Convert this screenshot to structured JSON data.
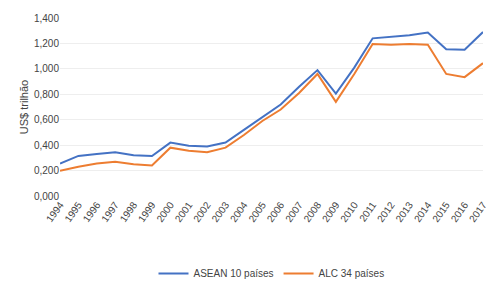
{
  "chart_data": {
    "type": "line",
    "x": [
      1994,
      1995,
      1996,
      1997,
      1998,
      1999,
      2000,
      2001,
      2002,
      2003,
      2004,
      2005,
      2006,
      2007,
      2008,
      2009,
      2010,
      2011,
      2012,
      2013,
      2014,
      2015,
      2016,
      2017
    ],
    "series": [
      {
        "name": "ASEAN 10 países",
        "color": "#4472C4",
        "values": [
          0.255,
          0.315,
          0.33,
          0.345,
          0.32,
          0.315,
          0.42,
          0.395,
          0.39,
          0.42,
          0.52,
          0.62,
          0.72,
          0.86,
          0.99,
          0.805,
          1.01,
          1.24,
          1.25,
          1.265,
          1.285,
          1.155,
          1.15,
          1.29
        ]
      },
      {
        "name": "ALC 34 países",
        "color": "#ED7D31",
        "values": [
          0.198,
          0.23,
          0.255,
          0.27,
          0.25,
          0.24,
          0.38,
          0.355,
          0.345,
          0.38,
          0.48,
          0.59,
          0.68,
          0.81,
          0.96,
          0.74,
          0.96,
          1.195,
          1.19,
          1.195,
          1.19,
          0.96,
          0.935,
          1.045
        ]
      }
    ],
    "ylabel": "US$ trilhão",
    "xlim": [
      1994,
      2017
    ],
    "xticks": [
      1994,
      1995,
      1996,
      1997,
      1998,
      1999,
      2000,
      2001,
      2002,
      2003,
      2004,
      2005,
      2006,
      2007,
      2008,
      2009,
      2010,
      2011,
      2012,
      2013,
      2014,
      2015,
      2016,
      2017
    ],
    "ylim": [
      0,
      1.4
    ],
    "yticks": [
      {
        "value": 0.0,
        "label": "0,000"
      },
      {
        "value": 0.2,
        "label": "0,200"
      },
      {
        "value": 0.4,
        "label": "0,400"
      },
      {
        "value": 0.6,
        "label": "0,600"
      },
      {
        "value": 0.8,
        "label": "0,800"
      },
      {
        "value": 1.0,
        "label": "1,000"
      },
      {
        "value": 1.2,
        "label": "1,200"
      },
      {
        "value": 1.4,
        "label": "1,400"
      }
    ],
    "grid": true,
    "legend": "bottom"
  }
}
